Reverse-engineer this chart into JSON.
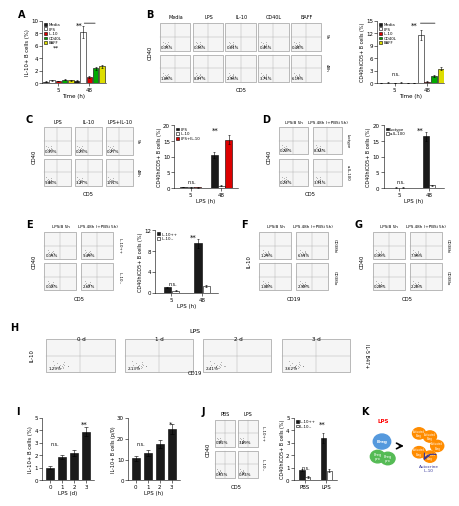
{
  "panel_A": {
    "xlabel": "Time (h)",
    "ylabel": "IL-10+ B cells (%)",
    "groups": [
      "Media",
      "LPS",
      "IL-10",
      "CD40L",
      "BAFF"
    ],
    "colors": [
      "#1a1a1a",
      "#ffffff",
      "#dd0000",
      "#00aa00",
      "#dddd00"
    ],
    "data_5h": [
      0.28,
      0.5,
      0.38,
      0.55,
      0.48
    ],
    "data_48h": [
      0.45,
      8.2,
      0.95,
      2.4,
      2.7
    ],
    "err_5h": [
      0.05,
      0.08,
      0.05,
      0.08,
      0.06
    ],
    "err_48h": [
      0.08,
      0.9,
      0.15,
      0.25,
      0.28
    ],
    "ymax": 10,
    "yticks": [
      0,
      2,
      4,
      6,
      8,
      10
    ]
  },
  "panel_B_right": {
    "xlabel": "Time (h)",
    "ylabel": "CD40hiCD5+ B cells (%)",
    "groups": [
      "Media",
      "LPS",
      "IL-10",
      "CD40L",
      "BAFF"
    ],
    "colors": [
      "#1a1a1a",
      "#ffffff",
      "#dd0000",
      "#00aa00",
      "#dddd00"
    ],
    "data_5h": [
      0.08,
      0.18,
      0.12,
      0.18,
      0.16
    ],
    "data_48h": [
      0.15,
      11.5,
      0.45,
      1.8,
      3.5
    ],
    "err_5h": [
      0.02,
      0.04,
      0.02,
      0.04,
      0.03
    ],
    "err_48h": [
      0.04,
      1.2,
      0.08,
      0.2,
      0.4
    ],
    "ymax": 15,
    "yticks": [
      0,
      3,
      6,
      9,
      12,
      15
    ]
  },
  "panel_C_right": {
    "xlabel": "LPS (h)",
    "ylabel": "CD40hiCD5+ B cells (%)",
    "groups": [
      "LPS",
      "IL-10",
      "LPS+IL-10"
    ],
    "colors": [
      "#1a1a1a",
      "#ffffff",
      "#dd0000"
    ],
    "data_5h": [
      0.28,
      0.22,
      0.25
    ],
    "data_48h": [
      10.5,
      0.75,
      15.5
    ],
    "err_5h": [
      0.05,
      0.04,
      0.05
    ],
    "err_48h": [
      1.0,
      0.15,
      1.5
    ],
    "ymax": 20,
    "yticks": [
      0,
      5,
      10,
      15,
      20
    ]
  },
  "panel_D_right": {
    "xlabel": "LPS (h)",
    "ylabel": "CD40hiCD5+ B cells (%)",
    "groups": [
      "Isotype",
      "a-IL-100"
    ],
    "colors": [
      "#1a1a1a",
      "#ffffff"
    ],
    "data_5h": [
      0.18,
      0.18
    ],
    "data_48h": [
      16.5,
      0.9
    ],
    "err_5h": [
      0.04,
      0.04
    ],
    "err_48h": [
      1.5,
      0.18
    ],
    "ymax": 20,
    "yticks": [
      0,
      5,
      10,
      15,
      20
    ]
  },
  "panel_E_right": {
    "xlabel": "LPS (h)",
    "ylabel": "CD40hiCD5+ B cells (%)",
    "groups": [
      "IL-10++",
      "IL-10--"
    ],
    "colors": [
      "#1a1a1a",
      "#ffffff"
    ],
    "data_5h": [
      1.05,
      0.45
    ],
    "data_48h": [
      9.5,
      1.4
    ],
    "err_5h": [
      0.1,
      0.08
    ],
    "err_48h": [
      0.9,
      0.18
    ],
    "ymax": 12,
    "yticks": [
      0,
      4,
      8,
      12
    ]
  },
  "panel_I_left": {
    "xlabel": "LPS (d)",
    "ylabel": "IL-10+ B cells (%)",
    "xticks": [
      "0",
      "1",
      "2",
      "3"
    ],
    "values": [
      1.0,
      1.85,
      2.2,
      3.9
    ],
    "errors": [
      0.12,
      0.18,
      0.25,
      0.38
    ],
    "ymax": 5,
    "yticks": [
      0,
      1,
      2,
      3,
      4,
      5
    ]
  },
  "panel_I_right": {
    "xlabel": "LPS (h)",
    "ylabel": "IL-10+ B cells (p/0)",
    "xticks": [
      "0",
      "1",
      "2",
      "3"
    ],
    "values": [
      10.5,
      13.2,
      17.5,
      24.5
    ],
    "errors": [
      1.1,
      1.4,
      1.9,
      2.4
    ],
    "ymax": 30,
    "yticks": [
      0,
      10,
      20,
      30
    ]
  },
  "panel_J_right": {
    "ylabel": "CD40hiCD5+ B cells (%)",
    "groups": [
      "IL-10++",
      "IL-10--"
    ],
    "colors": [
      "#1a1a1a",
      "#ffffff"
    ],
    "xticks": [
      "PBS",
      "LPS"
    ],
    "data_pbs": [
      0.82,
      0.28
    ],
    "data_lps": [
      3.4,
      0.78
    ],
    "err_pbs": [
      0.1,
      0.05
    ],
    "err_lps": [
      0.38,
      0.1
    ],
    "ymax": 5,
    "yticks": [
      0,
      1,
      2,
      3,
      4,
      5
    ]
  },
  "flow_B": {
    "col_labels": [
      "Media",
      "LPS",
      "IL-10",
      "CD40L",
      "BAFF"
    ],
    "row_labels": [
      "5h",
      "48h"
    ],
    "pcts_top": [
      "0.35%",
      "0.36%",
      "0.61%",
      "0.45%",
      "0.44%"
    ],
    "pcts_bot": [
      "1.88%",
      "8.07%",
      "2.96%",
      "3.71%",
      "6.13%"
    ],
    "xlabel": "CD5",
    "ylabel": "CD40"
  },
  "flow_C": {
    "col_labels": [
      "LPS",
      "IL-10",
      "LPS+IL-10"
    ],
    "pcts_top": [
      "0.19%",
      "0.23%",
      "0.27%"
    ],
    "pcts_bot": [
      "9.84%",
      "3.27%",
      "17.1%"
    ],
    "xlabel": "CD5",
    "ylabel": "CD40"
  },
  "flow_D": {
    "col_labels": [
      "LPSiB 5h",
      "LPS 48h (+PBSi 5h)"
    ],
    "row_labels": [
      "Isotype",
      "a-IL-100"
    ],
    "pcts_top": [
      "0.20%",
      "8.34%"
    ],
    "pcts_bot": [
      "0.22%",
      "3.91%"
    ],
    "xlabel": "CD5",
    "ylabel": "CD40"
  },
  "flow_E": {
    "col_labels": [
      "LPSiB 5h",
      "LPS 48h (+PBSi 5h)"
    ],
    "row_labels": [
      "IL-10++",
      "IL-10--"
    ],
    "pcts_top": [
      "0.15%",
      "9.49%"
    ],
    "pcts_bot": [
      "0.13%",
      "2.67%"
    ],
    "xlabel": "CD5",
    "ylabel": "CD40"
  },
  "flow_F": {
    "col_labels": [
      "LPSiB 5h",
      "LPS 48h (+PBSi 5h)"
    ],
    "row_labels": [
      "CD38hi",
      "CD38lo"
    ],
    "pcts_top": [
      "1.29%",
      "6.51%"
    ],
    "pcts_bot": [
      "1.00%",
      "2.99%"
    ],
    "xlabel": "CD19",
    "ylabel": "IL-10"
  },
  "flow_G": {
    "col_labels": [
      "LPSiB 5h",
      "LPS 48h (+PBSi 5h)"
    ],
    "row_labels": [
      "CD38hi",
      "CD38lo"
    ],
    "pcts_top": [
      "0.30%",
      "7.96%"
    ],
    "pcts_bot": [
      "0.29%",
      "2.25%"
    ],
    "xlabel": "CD5",
    "ylabel": "CD40"
  },
  "flow_H": {
    "col_labels": [
      "0 d",
      "1 d",
      "2 d",
      "3 d"
    ],
    "pcts": [
      "1.29%",
      "2.13%",
      "2.41%",
      "3.62%"
    ],
    "xlabel": "CD19",
    "ylabel": "IL-10",
    "right_label": "IL-5 B47+"
  },
  "flow_J": {
    "col_labels": [
      "PBS",
      "LPS"
    ],
    "row_labels": [
      "IL-10++",
      "IL-10--"
    ],
    "pcts_top": [
      "0.72%",
      "3.29%"
    ],
    "pcts_bot": [
      "0.53%",
      "0.74%"
    ],
    "xlabel": "CD5",
    "ylabel": "CD40"
  }
}
